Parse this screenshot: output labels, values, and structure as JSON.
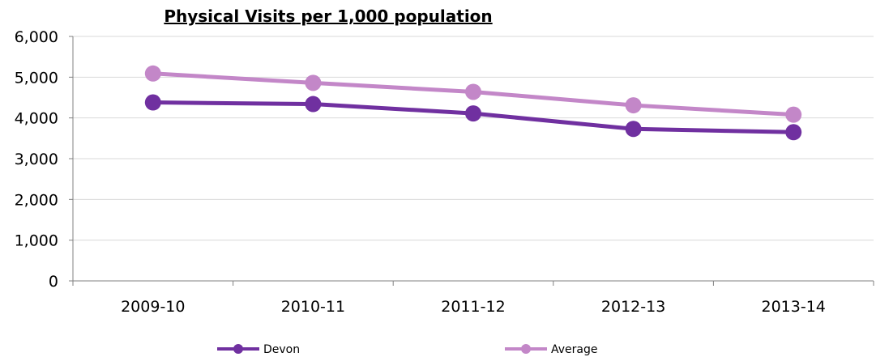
{
  "chart_data": {
    "type": "line",
    "title": "Physical Visits per 1,000 population",
    "xlabel": "",
    "ylabel": "",
    "categories": [
      "2009-10",
      "2010-11",
      "2011-12",
      "2012-13",
      "2013-14"
    ],
    "series": [
      {
        "name": "Devon",
        "color": "#7030a0",
        "values": [
          4380,
          4340,
          4110,
          3730,
          3650
        ]
      },
      {
        "name": "Average",
        "color": "#c387c8",
        "values": [
          5090,
          4860,
          4640,
          4310,
          4080
        ]
      }
    ],
    "ylim": [
      0,
      6000
    ],
    "yticks": [
      0,
      1000,
      2000,
      3000,
      4000,
      5000,
      6000
    ],
    "ytick_labels": [
      "0",
      "1,000",
      "2,000",
      "3,000",
      "4,000",
      "5,000",
      "6,000"
    ],
    "grid": true,
    "legend_position": "bottom",
    "colors": {
      "grid": "#d9d9d9",
      "axis": "#808080"
    }
  }
}
